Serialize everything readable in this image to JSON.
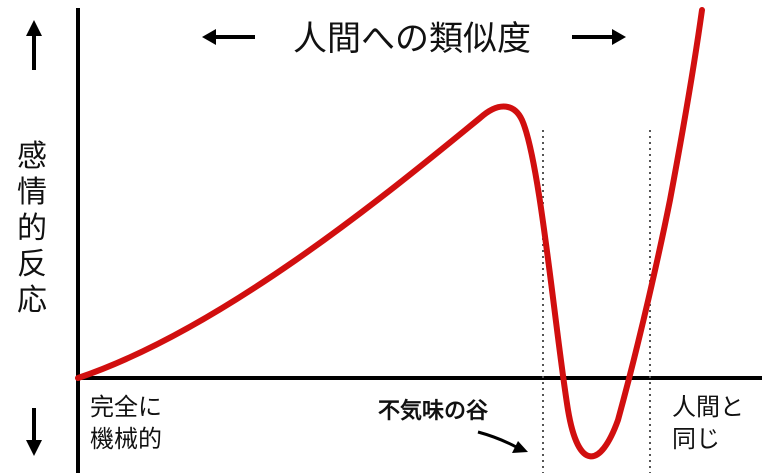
{
  "diagram": {
    "x_axis_title": "人間への類似度",
    "y_axis_title": [
      "感",
      "情",
      "的",
      "反",
      "応"
    ],
    "left_label": [
      "完全に",
      "機械的"
    ],
    "right_label": [
      "人間と",
      "同じ"
    ],
    "valley_label": "不気味の谷",
    "colors": {
      "curve": "#d10f0f",
      "axis": "#000000",
      "guide": "#555555",
      "text": "#111111"
    }
  }
}
